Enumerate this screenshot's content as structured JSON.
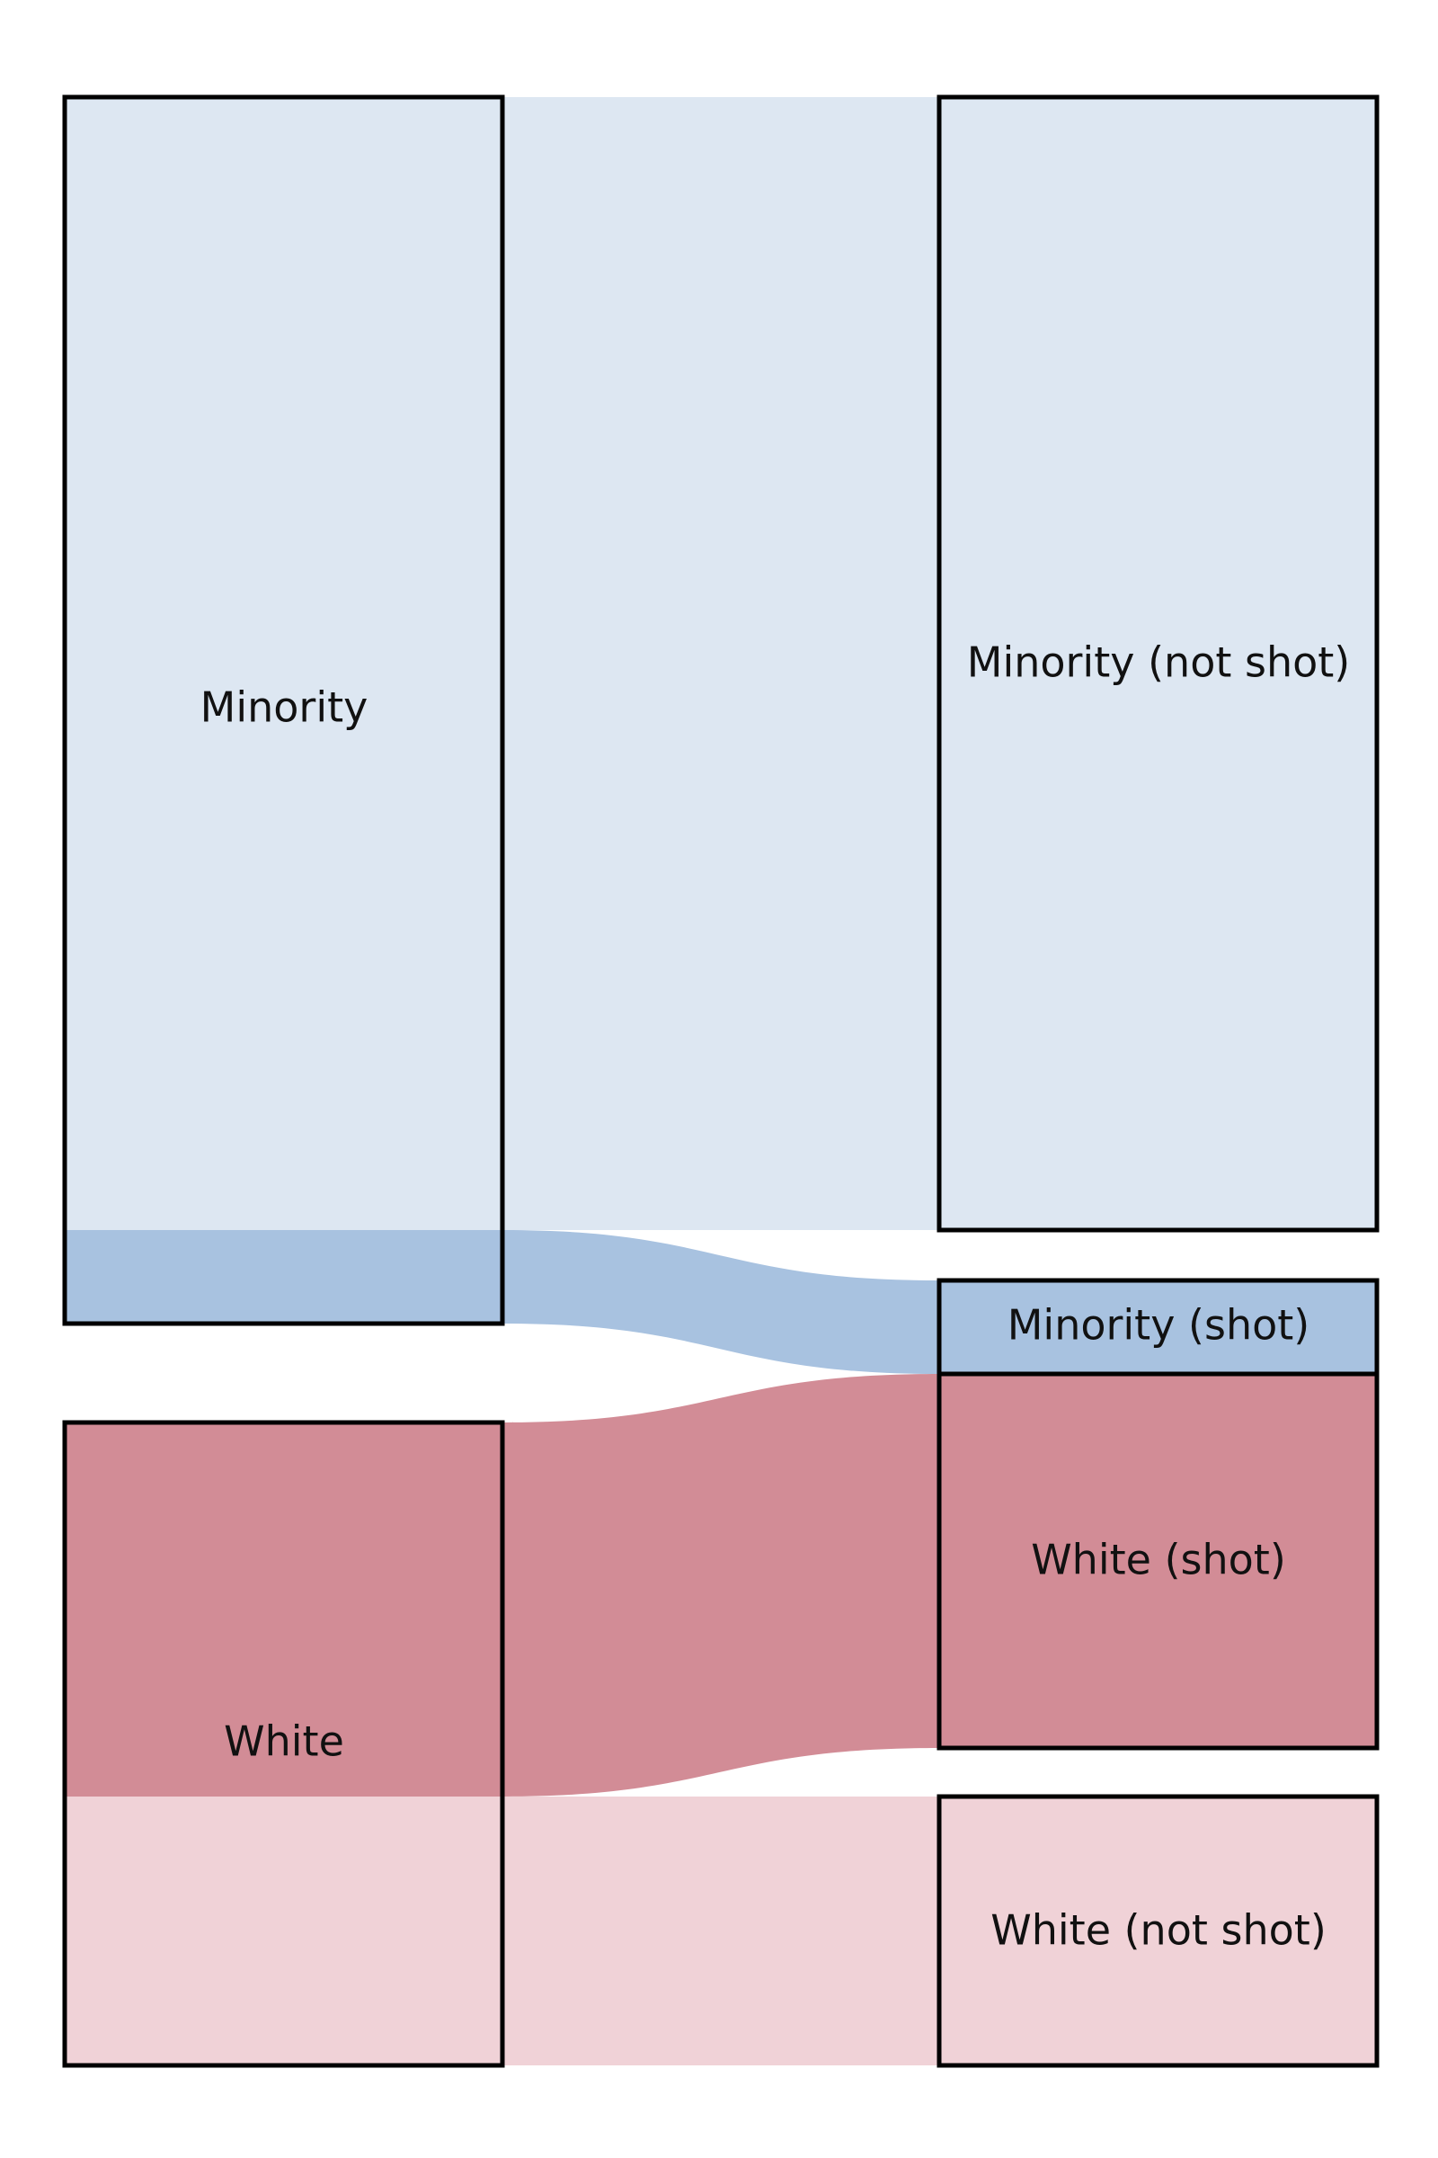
{
  "diagram": {
    "type": "sankey",
    "nodes": {
      "minority": {
        "label": "Minority",
        "color": "#dde7f2"
      },
      "white": {
        "label": "White",
        "color": "#f0d2d7"
      },
      "minority_not_shot": {
        "label": "Minority (not shot)",
        "color": "#dde7f2"
      },
      "minority_shot": {
        "label": "Minority (shot)",
        "color": "#a8c2e0"
      },
      "white_shot": {
        "label": "White (shot)",
        "color": "#d28c96"
      },
      "white_not_shot": {
        "label": "White (not shot)",
        "color": "#f0d2d7"
      }
    },
    "links": [
      {
        "from": "Minority",
        "to": "Minority (not shot)",
        "color": "#dde7f2"
      },
      {
        "from": "Minority",
        "to": "Minority (shot)",
        "color": "#a8c2e0"
      },
      {
        "from": "White",
        "to": "White (shot)",
        "color": "#d28c96"
      },
      {
        "from": "White",
        "to": "White (not shot)",
        "color": "#f0d2d7"
      }
    ]
  }
}
